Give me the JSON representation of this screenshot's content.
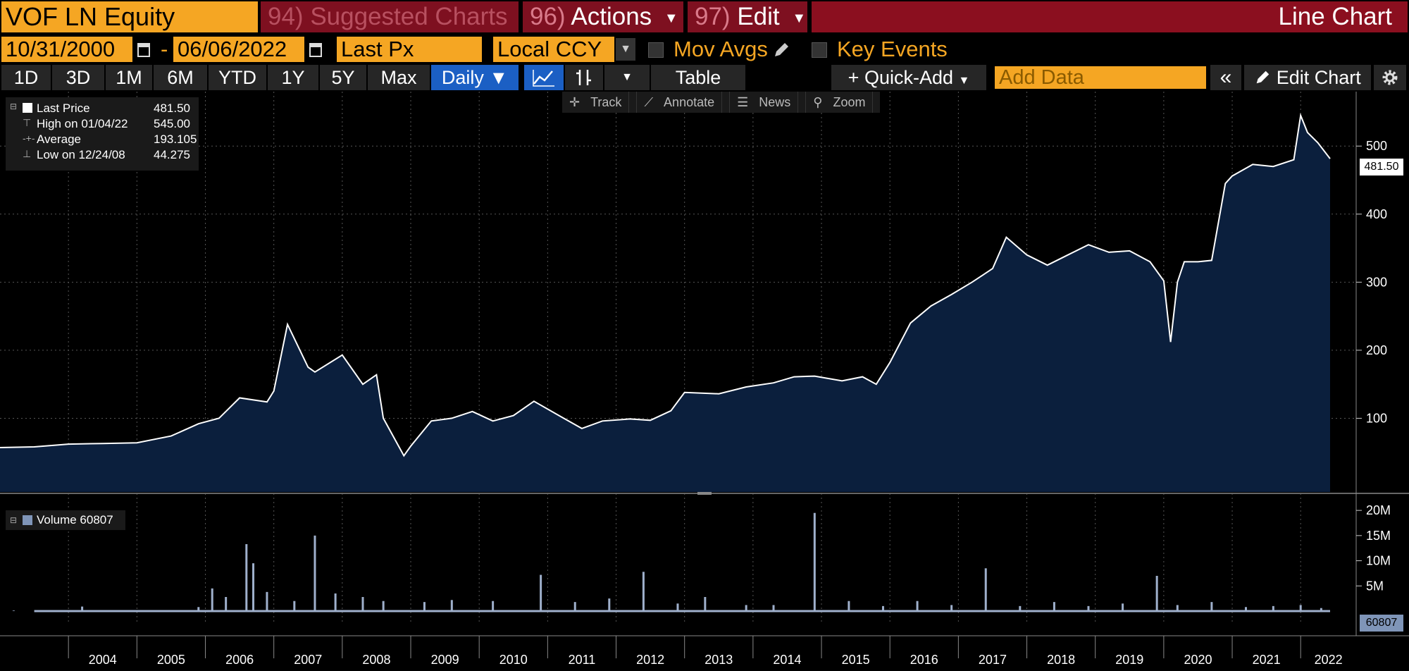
{
  "header": {
    "ticker": "VOF LN Equity",
    "suggested": {
      "num": "94)",
      "label": "Suggested Charts"
    },
    "actions": {
      "num": "96)",
      "label": "Actions"
    },
    "edit": {
      "num": "97)",
      "label": "Edit"
    },
    "chart_type": "Line Chart"
  },
  "controls": {
    "start_date": "10/31/2000",
    "date_sep": "-",
    "end_date": "06/06/2022",
    "field": "Last Px",
    "currency": "Local CCY",
    "mov_avgs": "Mov Avgs",
    "key_events": "Key Events"
  },
  "timeframe": {
    "ranges": [
      "1D",
      "3D",
      "1M",
      "6M",
      "YTD",
      "1Y",
      "5Y",
      "Max"
    ],
    "frequency": "Daily ▼",
    "table": "Table",
    "quick_add": "Quick-Add",
    "add_data_placeholder": "Add Data",
    "edit_chart": "Edit Chart"
  },
  "chart_tools": [
    "Track",
    "Annotate",
    "News",
    "Zoom"
  ],
  "legend": {
    "last_label": "Last Price",
    "last_value": "481.50",
    "high_label": "High on 01/04/22",
    "high_value": "545.00",
    "avg_label": "Average",
    "avg_value": "193.105",
    "low_label": "Low on 12/24/08",
    "low_value": "44.275"
  },
  "volume_legend": "Volume 60807",
  "price_tag": "481.50",
  "volume_tag": "60807",
  "colors": {
    "accent": "#f5a623",
    "menu": "#7e1020",
    "area": "#0b1f3d",
    "line": "#ffffff",
    "volume": "#7f95b8"
  },
  "chart_data": [
    {
      "type": "area",
      "series": [
        {
          "name": "Last Price",
          "x": [
            2003.0,
            2003.5,
            2004.0,
            2004.5,
            2005.0,
            2005.5,
            2005.9,
            2006.2,
            2006.5,
            2006.9,
            2007.0,
            2007.2,
            2007.5,
            2007.6,
            2008.0,
            2008.3,
            2008.5,
            2008.6,
            2008.9,
            2009.0,
            2009.3,
            2009.6,
            2009.9,
            2010.2,
            2010.5,
            2010.8,
            2011.2,
            2011.5,
            2011.8,
            2012.2,
            2012.5,
            2012.8,
            2013.0,
            2013.5,
            2013.9,
            2014.3,
            2014.6,
            2014.9,
            2015.3,
            2015.6,
            2015.8,
            2016.0,
            2016.3,
            2016.6,
            2016.9,
            2017.2,
            2017.5,
            2017.7,
            2018.0,
            2018.3,
            2018.6,
            2018.9,
            2019.2,
            2019.5,
            2019.8,
            2020.0,
            2020.1,
            2020.2,
            2020.3,
            2020.5,
            2020.7,
            2020.9,
            2021.0,
            2021.3,
            2021.6,
            2021.9,
            2022.0,
            2022.1,
            2022.25,
            2022.43
          ],
          "y": [
            57,
            58,
            62,
            63,
            64,
            74,
            92,
            100,
            130,
            124,
            140,
            238,
            175,
            168,
            193,
            150,
            164,
            100,
            45,
            59,
            96,
            100,
            110,
            96,
            104,
            125,
            102,
            85,
            96,
            99,
            97,
            111,
            138,
            136,
            146,
            152,
            161,
            162,
            155,
            161,
            150,
            182,
            240,
            265,
            282,
            300,
            320,
            366,
            340,
            325,
            340,
            355,
            344,
            346,
            330,
            302,
            212,
            300,
            330,
            330,
            332,
            445,
            456,
            473,
            470,
            480,
            545,
            520,
            505,
            481.5
          ]
        }
      ],
      "xlim": [
        2003.0,
        2022.43
      ],
      "ylim": [
        0,
        580
      ],
      "y_ticks": [
        100,
        200,
        300,
        400,
        500
      ],
      "x_ticks": [
        "2004",
        "2005",
        "2006",
        "2007",
        "2008",
        "2009",
        "2010",
        "2011",
        "2012",
        "2013",
        "2014",
        "2015",
        "2016",
        "2017",
        "2018",
        "2019",
        "2020",
        "2021",
        "2022"
      ],
      "grid": true
    },
    {
      "type": "bar",
      "series": [
        {
          "name": "Volume",
          "x": [
            2003.2,
            2003.7,
            2004.2,
            2005.5,
            2005.9,
            2006.1,
            2006.3,
            2006.6,
            2006.7,
            2006.9,
            2007.3,
            2007.6,
            2007.9,
            2008.3,
            2008.6,
            2009.2,
            2009.6,
            2010.2,
            2010.9,
            2011.4,
            2011.9,
            2012.4,
            2012.9,
            2013.3,
            2013.9,
            2014.3,
            2014.9,
            2015.4,
            2015.9,
            2016.4,
            2016.9,
            2017.4,
            2017.9,
            2018.4,
            2018.9,
            2019.4,
            2019.9,
            2020.2,
            2020.7,
            2021.2,
            2021.6,
            2022.0,
            2022.3
          ],
          "y": [
            0.1,
            0.15,
            0.9,
            0.2,
            0.8,
            4.5,
            2.8,
            13.3,
            9.5,
            3.8,
            2.0,
            15.0,
            3.5,
            2.8,
            2.0,
            1.8,
            2.2,
            2.0,
            7.2,
            1.8,
            2.5,
            7.8,
            1.5,
            2.8,
            1.2,
            1.2,
            19.5,
            2.0,
            1.0,
            2.0,
            1.2,
            8.5,
            1.0,
            1.8,
            1.0,
            1.5,
            7.0,
            1.2,
            1.8,
            0.8,
            1.0,
            1.2,
            0.6
          ]
        }
      ],
      "y_ticks": [
        "5M",
        "10M",
        "15M",
        "20M"
      ],
      "ylim": [
        0,
        21
      ]
    }
  ]
}
